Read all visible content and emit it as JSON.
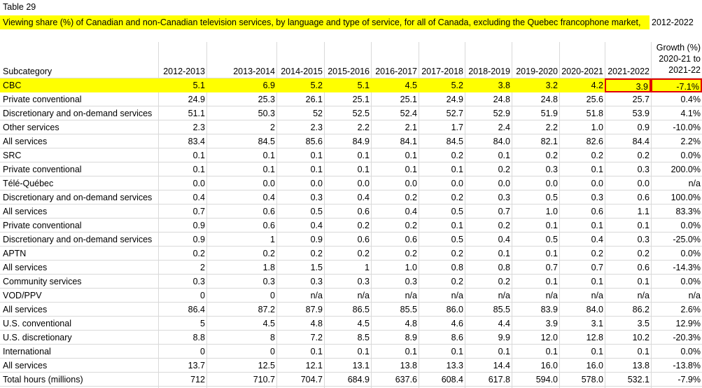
{
  "table_label": "Table 29",
  "caption": "Viewing share (%) of Canadian and non-Canadian television services, by language and type of service, for all of Canada, excluding the Quebec francophone market,",
  "caption_years": "2012-2022",
  "header": {
    "subcategory": "Subcategory",
    "years": [
      "2012-2013",
      "2013-2014",
      "2014-2015",
      "2015-2016",
      "2016-2017",
      "2017-2018",
      "2018-2019",
      "2019-2020",
      "2020-2021",
      "2021-2022"
    ],
    "growth_line1": "Growth (%)",
    "growth_line2": "2020-21 to",
    "growth_line3": "2021-22"
  },
  "highlight_color": "#ffff00",
  "selection_border_color": "#e00000",
  "rows": [
    {
      "label": "CBC",
      "values": [
        "5.1",
        "6.9",
        "5.2",
        "5.1",
        "4.5",
        "5.2",
        "3.8",
        "3.2",
        "4.2",
        "3.9",
        "-7.1%"
      ]
    },
    {
      "label": "Private conventional",
      "values": [
        "24.9",
        "25.3",
        "26.1",
        "25.1",
        "25.1",
        "24.9",
        "24.8",
        "24.8",
        "25.6",
        "25.7",
        "0.4%"
      ]
    },
    {
      "label": "Discretionary and on-demand services",
      "values": [
        "51.1",
        "50.3",
        "52",
        "52.5",
        "52.4",
        "52.7",
        "52.9",
        "51.9",
        "51.8",
        "53.9",
        "4.1%"
      ]
    },
    {
      "label": "Other services",
      "values": [
        "2.3",
        "2",
        "2.3",
        "2.2",
        "2.1",
        "1.7",
        "2.4",
        "2.2",
        "1.0",
        "0.9",
        "-10.0%"
      ]
    },
    {
      "label": "All services",
      "values": [
        "83.4",
        "84.5",
        "85.6",
        "84.9",
        "84.1",
        "84.5",
        "84.0",
        "82.1",
        "82.6",
        "84.4",
        "2.2%"
      ]
    },
    {
      "label": "SRC",
      "values": [
        "0.1",
        "0.1",
        "0.1",
        "0.1",
        "0.1",
        "0.2",
        "0.1",
        "0.2",
        "0.2",
        "0.2",
        "0.0%"
      ]
    },
    {
      "label": "Private conventional",
      "values": [
        "0.1",
        "0.1",
        "0.1",
        "0.1",
        "0.1",
        "0.1",
        "0.2",
        "0.3",
        "0.1",
        "0.3",
        "200.0%"
      ]
    },
    {
      "label": "Télé-Québec",
      "values": [
        "0.0",
        "0.0",
        "0.0",
        "0.0",
        "0.0",
        "0.0",
        "0.0",
        "0.0",
        "0.0",
        "0.0",
        "n/a"
      ]
    },
    {
      "label": "Discretionary and on-demand services",
      "values": [
        "0.4",
        "0.4",
        "0.3",
        "0.4",
        "0.2",
        "0.2",
        "0.3",
        "0.5",
        "0.3",
        "0.6",
        "100.0%"
      ]
    },
    {
      "label": "All services",
      "values": [
        "0.7",
        "0.6",
        "0.5",
        "0.6",
        "0.4",
        "0.5",
        "0.7",
        "1.0",
        "0.6",
        "1.1",
        "83.3%"
      ]
    },
    {
      "label": "Private conventional",
      "values": [
        "0.9",
        "0.6",
        "0.4",
        "0.2",
        "0.2",
        "0.1",
        "0.2",
        "0.1",
        "0.1",
        "0.1",
        "0.0%"
      ]
    },
    {
      "label": "Discretionary and on-demand services",
      "values": [
        "0.9",
        "1",
        "0.9",
        "0.6",
        "0.6",
        "0.5",
        "0.4",
        "0.5",
        "0.4",
        "0.3",
        "-25.0%"
      ]
    },
    {
      "label": "APTN",
      "values": [
        "0.2",
        "0.2",
        "0.2",
        "0.2",
        "0.2",
        "0.2",
        "0.1",
        "0.1",
        "0.2",
        "0.2",
        "0.0%"
      ]
    },
    {
      "label": "All services",
      "values": [
        "2",
        "1.8",
        "1.5",
        "1",
        "1.0",
        "0.8",
        "0.8",
        "0.7",
        "0.7",
        "0.6",
        "-14.3%"
      ]
    },
    {
      "label": "Community services",
      "values": [
        "0.3",
        "0.3",
        "0.3",
        "0.3",
        "0.3",
        "0.2",
        "0.2",
        "0.1",
        "0.1",
        "0.1",
        "0.0%"
      ]
    },
    {
      "label": "VOD/PPV",
      "values": [
        "0",
        "0",
        "n/a",
        "n/a",
        "n/a",
        "n/a",
        "n/a",
        "n/a",
        "n/a",
        "n/a",
        "n/a"
      ]
    },
    {
      "label": "All services",
      "values": [
        "86.4",
        "87.2",
        "87.9",
        "86.5",
        "85.5",
        "86.0",
        "85.5",
        "83.9",
        "84.0",
        "86.2",
        "2.6%"
      ]
    },
    {
      "label": "U.S. conventional",
      "values": [
        "5",
        "4.5",
        "4.8",
        "4.5",
        "4.8",
        "4.6",
        "4.4",
        "3.9",
        "3.1",
        "3.5",
        "12.9%"
      ]
    },
    {
      "label": "U.S. discretionary",
      "values": [
        "8.8",
        "8",
        "7.2",
        "8.5",
        "8.9",
        "8.6",
        "9.9",
        "12.0",
        "12.8",
        "10.2",
        "-20.3%"
      ]
    },
    {
      "label": "International",
      "values": [
        "0",
        "0",
        "0.1",
        "0.1",
        "0.1",
        "0.1",
        "0.1",
        "0.1",
        "0.1",
        "0.1",
        "0.0%"
      ]
    },
    {
      "label": "All services",
      "values": [
        "13.7",
        "12.5",
        "12.1",
        "13.1",
        "13.8",
        "13.3",
        "14.4",
        "16.0",
        "16.0",
        "13.8",
        "-13.8%"
      ]
    },
    {
      "label": "Total hours (millions)",
      "values": [
        "712",
        "710.7",
        "704.7",
        "684.9",
        "637.6",
        "608.4",
        "617.8",
        "594.0",
        "578.0",
        "532.1",
        "-7.9%"
      ]
    }
  ]
}
